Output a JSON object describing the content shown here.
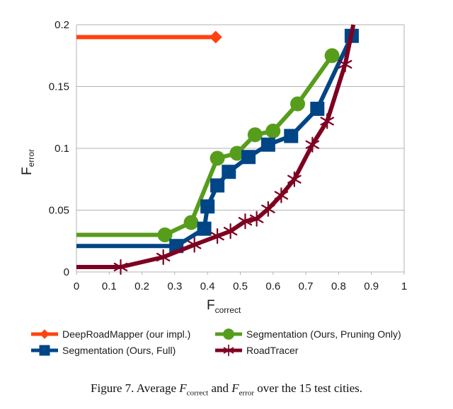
{
  "chart_data": {
    "type": "line",
    "xlabel": "F",
    "xlabel_sub": "correct",
    "ylabel": "F",
    "ylabel_sub": "error",
    "xlim": [
      0,
      1
    ],
    "ylim": [
      0,
      0.2
    ],
    "xticks": [
      0,
      0.1,
      0.2,
      0.3,
      0.4,
      0.5,
      0.6,
      0.7,
      0.8,
      0.9,
      1
    ],
    "xtick_labels": [
      "0",
      "0.1",
      "0.2",
      "0.3",
      "0.4",
      "0.5",
      "0.6",
      "0.7",
      "0.8",
      "0.9",
      "1"
    ],
    "yticks": [
      0,
      0.05,
      0.1,
      0.15,
      0.2
    ],
    "ytick_labels": [
      "0",
      "0.05",
      "0.1",
      "0.15",
      "0.2"
    ],
    "series": [
      {
        "name": "DeepRoadMapper (our impl.)",
        "color": "#ff420e",
        "marker": "diamond",
        "x": [
          0,
          0.425
        ],
        "y": [
          0.19,
          0.19
        ],
        "marker_points": [
          [
            0.425,
            0.19
          ]
        ]
      },
      {
        "name": "Segmentation (Ours, Pruning Only)",
        "color": "#579d1c",
        "marker": "circle",
        "x": [
          0,
          0.27,
          0.35,
          0.43,
          0.49,
          0.545,
          0.6,
          0.675,
          0.78
        ],
        "y": [
          0.03,
          0.03,
          0.04,
          0.092,
          0.096,
          0.111,
          0.114,
          0.136,
          0.175
        ],
        "marker_points": [
          [
            0.27,
            0.03
          ],
          [
            0.35,
            0.04
          ],
          [
            0.43,
            0.092
          ],
          [
            0.49,
            0.096
          ],
          [
            0.545,
            0.111
          ],
          [
            0.6,
            0.114
          ],
          [
            0.675,
            0.136
          ],
          [
            0.78,
            0.175
          ]
        ]
      },
      {
        "name": "Segmentation (Ours, Full)",
        "color": "#004586",
        "marker": "square",
        "x": [
          0,
          0.305,
          0.39,
          0.4,
          0.43,
          0.465,
          0.525,
          0.585,
          0.655,
          0.735,
          0.84
        ],
        "y": [
          0.021,
          0.021,
          0.035,
          0.053,
          0.07,
          0.081,
          0.093,
          0.103,
          0.11,
          0.132,
          0.191
        ],
        "marker_points": [
          [
            0.305,
            0.021
          ],
          [
            0.39,
            0.035
          ],
          [
            0.4,
            0.053
          ],
          [
            0.43,
            0.07
          ],
          [
            0.465,
            0.081
          ],
          [
            0.525,
            0.093
          ],
          [
            0.585,
            0.103
          ],
          [
            0.655,
            0.11
          ],
          [
            0.735,
            0.132
          ],
          [
            0.84,
            0.191
          ]
        ]
      },
      {
        "name": "RoadTracer",
        "color": "#7e0021",
        "marker": "star",
        "x": [
          0,
          0.135,
          0.265,
          0.36,
          0.43,
          0.47,
          0.515,
          0.55,
          0.585,
          0.625,
          0.665,
          0.72,
          0.765,
          0.82,
          0.845
        ],
        "y": [
          0.004,
          0.004,
          0.012,
          0.022,
          0.029,
          0.033,
          0.041,
          0.043,
          0.051,
          0.062,
          0.075,
          0.103,
          0.122,
          0.168,
          0.2
        ],
        "marker_points": [
          [
            0.135,
            0.004
          ],
          [
            0.265,
            0.012
          ],
          [
            0.36,
            0.022
          ],
          [
            0.43,
            0.029
          ],
          [
            0.47,
            0.033
          ],
          [
            0.515,
            0.041
          ],
          [
            0.55,
            0.043
          ],
          [
            0.585,
            0.051
          ],
          [
            0.625,
            0.062
          ],
          [
            0.665,
            0.075
          ],
          [
            0.72,
            0.103
          ],
          [
            0.765,
            0.122
          ],
          [
            0.82,
            0.168
          ]
        ]
      }
    ],
    "legend": [
      "DeepRoadMapper (our impl.)",
      "Segmentation (Ours, Pruning Only)",
      "Segmentation (Ours, Full)",
      "RoadTracer"
    ],
    "legend_position": "bottom"
  },
  "caption": {
    "prefix": "Figure 7. Average ",
    "var1": "F",
    "var1_sub": "correct",
    "mid": " and ",
    "var2": "F",
    "var2_sub": "error",
    "suffix": " over the 15 test cities."
  }
}
